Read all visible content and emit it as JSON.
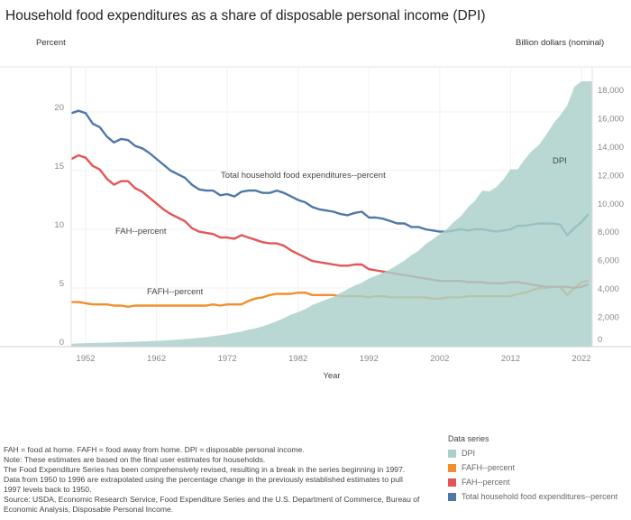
{
  "title": "Household food expenditures as a share of disposable personal income (DPI)",
  "chart_data": {
    "type": "line",
    "title": "Household food expenditures as a share of disposable personal income (DPI)",
    "xlabel": "Year",
    "ylabel_left": "Percent",
    "ylabel_right": "Billion dollars (nominal)",
    "x_ticks": [
      "1952",
      "1962",
      "1972",
      "1982",
      "1992",
      "2002",
      "2012",
      "2022"
    ],
    "y_left_ticks": [
      "0",
      "5",
      "10",
      "15",
      "20"
    ],
    "y_right_ticks": [
      "0",
      "2,000",
      "4,000",
      "6,000",
      "8,000",
      "10,000",
      "12,000",
      "14,000",
      "16,000",
      "18,000"
    ],
    "xlim": [
      1950,
      2023
    ],
    "ylim_left": [
      0,
      24
    ],
    "ylim_right": [
      0,
      19000
    ],
    "grid": true,
    "legend_placement": "bottom-right",
    "x": [
      1950,
      1951,
      1952,
      1953,
      1954,
      1955,
      1956,
      1957,
      1958,
      1959,
      1960,
      1961,
      1962,
      1963,
      1964,
      1965,
      1966,
      1967,
      1968,
      1969,
      1970,
      1971,
      1972,
      1973,
      1974,
      1975,
      1976,
      1977,
      1978,
      1979,
      1980,
      1981,
      1982,
      1983,
      1984,
      1985,
      1986,
      1987,
      1988,
      1989,
      1990,
      1991,
      1992,
      1993,
      1994,
      1995,
      1996,
      1997,
      1998,
      1999,
      2000,
      2001,
      2002,
      2003,
      2004,
      2005,
      2006,
      2007,
      2008,
      2009,
      2010,
      2011,
      2012,
      2013,
      2014,
      2015,
      2016,
      2017,
      2018,
      2019,
      2020,
      2021,
      2022,
      2023
    ],
    "series": [
      {
        "name": "DPI",
        "type": "area",
        "axis": "right",
        "color": "#a9d0cb",
        "label": "DPI",
        "values": [
          210,
          230,
          245,
          260,
          265,
          285,
          305,
          320,
          330,
          350,
          370,
          385,
          405,
          425,
          460,
          495,
          535,
          570,
          620,
          670,
          740,
          800,
          870,
          980,
          1070,
          1190,
          1300,
          1430,
          1610,
          1800,
          2020,
          2260,
          2430,
          2640,
          2930,
          3130,
          3320,
          3500,
          3790,
          4050,
          4310,
          4500,
          4800,
          5000,
          5220,
          5460,
          5760,
          6060,
          6450,
          6750,
          7240,
          7560,
          7930,
          8290,
          8800,
          9200,
          9830,
          10300,
          10990,
          10940,
          11240,
          11800,
          12500,
          12500,
          13200,
          13800,
          14200,
          14900,
          15700,
          16300,
          17000,
          18300,
          18700,
          18700
        ]
      },
      {
        "name": "FAFH--percent",
        "type": "line",
        "axis": "left",
        "color": "#f28e2b",
        "label": "FAFH--percent",
        "values": [
          3.8,
          3.8,
          3.7,
          3.6,
          3.6,
          3.6,
          3.5,
          3.5,
          3.4,
          3.5,
          3.5,
          3.5,
          3.5,
          3.5,
          3.5,
          3.5,
          3.5,
          3.5,
          3.5,
          3.5,
          3.6,
          3.5,
          3.6,
          3.6,
          3.6,
          3.9,
          4.1,
          4.2,
          4.4,
          4.5,
          4.5,
          4.5,
          4.6,
          4.6,
          4.4,
          4.4,
          4.4,
          4.4,
          4.3,
          4.3,
          4.3,
          4.3,
          4.2,
          4.3,
          4.3,
          4.2,
          4.2,
          4.2,
          4.2,
          4.2,
          4.2,
          4.1,
          4.1,
          4.2,
          4.2,
          4.2,
          4.3,
          4.3,
          4.3,
          4.3,
          4.3,
          4.3,
          4.3,
          4.5,
          4.6,
          4.8,
          5.0,
          5.0,
          5.1,
          5.1,
          4.4,
          5.0,
          5.5,
          5.6
        ]
      },
      {
        "name": "FAH--percent",
        "type": "line",
        "axis": "left",
        "color": "#e15759",
        "label": "FAH--percent",
        "values": [
          16.0,
          16.3,
          16.1,
          15.4,
          15.1,
          14.3,
          13.8,
          14.1,
          14.1,
          13.5,
          13.2,
          12.7,
          12.2,
          11.7,
          11.3,
          11.0,
          10.7,
          10.1,
          9.8,
          9.7,
          9.6,
          9.3,
          9.3,
          9.2,
          9.5,
          9.3,
          9.1,
          8.9,
          8.8,
          8.8,
          8.6,
          8.2,
          7.9,
          7.6,
          7.3,
          7.2,
          7.1,
          7.0,
          6.9,
          6.9,
          7.0,
          7.0,
          6.6,
          6.5,
          6.4,
          6.3,
          6.2,
          6.1,
          6.0,
          5.9,
          5.8,
          5.7,
          5.6,
          5.6,
          5.6,
          5.6,
          5.5,
          5.5,
          5.5,
          5.4,
          5.4,
          5.4,
          5.5,
          5.5,
          5.4,
          5.3,
          5.2,
          5.1,
          5.1,
          5.1,
          5.1,
          5.0,
          5.1,
          5.3
        ]
      },
      {
        "name": "Total household food expenditures--percent",
        "type": "line",
        "axis": "left",
        "color": "#4e79a7",
        "label": "Total household food expenditures--percent",
        "values": [
          19.9,
          20.1,
          19.9,
          19.0,
          18.7,
          17.9,
          17.4,
          17.7,
          17.6,
          17.1,
          16.9,
          16.5,
          16.0,
          15.5,
          15.0,
          14.7,
          14.4,
          13.8,
          13.4,
          13.3,
          13.3,
          12.9,
          13.0,
          12.8,
          13.2,
          13.3,
          13.3,
          13.1,
          13.1,
          13.3,
          13.1,
          12.8,
          12.5,
          12.3,
          11.9,
          11.7,
          11.6,
          11.5,
          11.3,
          11.2,
          11.4,
          11.5,
          11.0,
          11.0,
          10.9,
          10.7,
          10.5,
          10.5,
          10.2,
          10.2,
          10.0,
          9.9,
          9.8,
          9.8,
          9.9,
          10.0,
          9.9,
          10.0,
          10.0,
          9.9,
          9.8,
          9.9,
          10.0,
          10.3,
          10.3,
          10.4,
          10.5,
          10.5,
          10.5,
          10.4,
          9.5,
          10.1,
          10.6,
          11.3
        ]
      }
    ]
  },
  "notes": [
    "FAH = food at home. FAFH = food away from home. DPI = disposable personal income.",
    "Note: These estimates are based on the final user estimates for households.",
    "The Food Expenditure Series has been comprehensively revised, resulting in a break in the series beginning in 1997.",
    "Data from 1950 to 1996 are extrapolated using the percentage change in the previously established estimates to pull",
    "1997 levels back to 1950.",
    "Source: USDA, Economic Research Service, Food Expenditure Series and the U.S. Department of Commerce, Bureau of",
    "Economic Analysis, Disposable Personal Income."
  ],
  "legend": {
    "title": "Data series",
    "items": [
      {
        "label": "DPI",
        "color": "#a9d0cb"
      },
      {
        "label": "FAFH--percent",
        "color": "#f28e2b"
      },
      {
        "label": "FAH--percent",
        "color": "#e15759"
      },
      {
        "label": "Total household food expenditures--percent",
        "color": "#4e79a7"
      }
    ]
  }
}
